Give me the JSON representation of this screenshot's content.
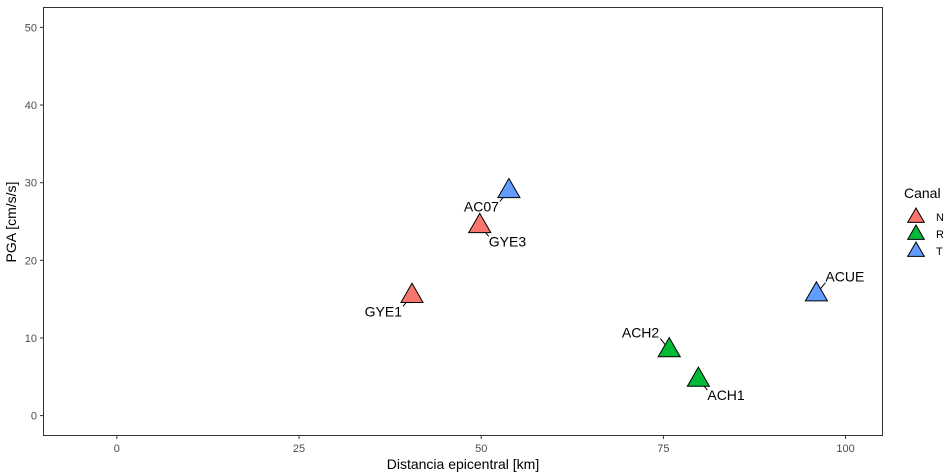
{
  "chart_data": {
    "type": "scatter",
    "xlabel": "Distancia epicentral [km]",
    "ylabel": "PGA [cm/s/s]",
    "xlim": [
      -10,
      105
    ],
    "ylim": [
      -2.5,
      52.5
    ],
    "xticks": [
      0,
      25,
      50,
      75,
      100
    ],
    "yticks": [
      0,
      10,
      20,
      30,
      40,
      50
    ],
    "grid": false,
    "legend": {
      "title": "Canal",
      "placement": "right",
      "entries": [
        {
          "name": "N",
          "color": "#F8766D"
        },
        {
          "name": "R",
          "color": "#00BA38"
        },
        {
          "name": "T",
          "color": "#619CFF"
        }
      ]
    },
    "points": [
      {
        "label": "GYE1",
        "x": 40.5,
        "y": 15.5,
        "canal": "N",
        "label_pos": "bottom-left"
      },
      {
        "label": "GYE3",
        "x": 49.8,
        "y": 24.5,
        "canal": "N",
        "label_pos": "bottom-right"
      },
      {
        "label": "AC07",
        "x": 53.8,
        "y": 29.0,
        "canal": "T",
        "label_pos": "bottom-left"
      },
      {
        "label": "ACH2",
        "x": 75.8,
        "y": 8.5,
        "canal": "R",
        "label_pos": "top-left"
      },
      {
        "label": "ACH1",
        "x": 79.8,
        "y": 4.7,
        "canal": "R",
        "label_pos": "bottom-right"
      },
      {
        "label": "ACUE",
        "x": 96.0,
        "y": 15.7,
        "canal": "T",
        "label_pos": "top-right"
      }
    ]
  }
}
